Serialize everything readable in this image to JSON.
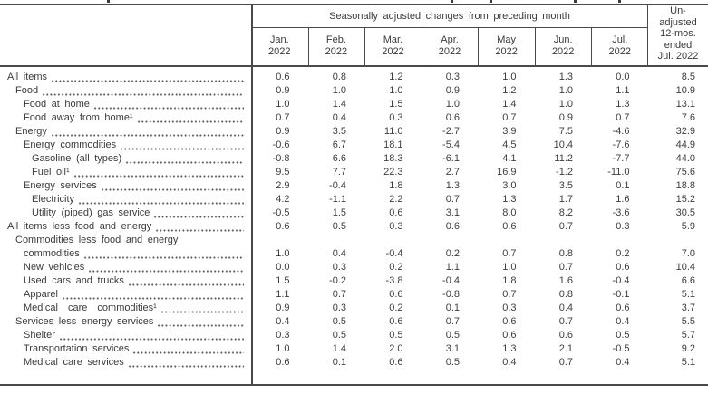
{
  "table": {
    "group_header": "Seasonally adjusted changes from preceding month",
    "months": [
      "Jan.",
      "Feb.",
      "Mar.",
      "Apr.",
      "May",
      "Jun.",
      "Jul."
    ],
    "year": "2022",
    "unadjusted_header_lines": [
      "Un-",
      "adjusted",
      "12-mos.",
      "ended",
      "Jul. 2022"
    ],
    "rows": [
      {
        "label": "All items",
        "indent": 0,
        "values": [
          "0.6",
          "0.8",
          "1.2",
          "0.3",
          "1.0",
          "1.3",
          "0.0"
        ],
        "unadjusted_12mo": "8.5"
      },
      {
        "label": "Food",
        "indent": 1,
        "values": [
          "0.9",
          "1.0",
          "1.0",
          "0.9",
          "1.2",
          "1.0",
          "1.1"
        ],
        "unadjusted_12mo": "10.9"
      },
      {
        "label": "Food at home",
        "indent": 2,
        "values": [
          "1.0",
          "1.4",
          "1.5",
          "1.0",
          "1.4",
          "1.0",
          "1.3"
        ],
        "unadjusted_12mo": "13.1"
      },
      {
        "label": "Food away from home¹",
        "indent": 2,
        "values": [
          "0.7",
          "0.4",
          "0.3",
          "0.6",
          "0.7",
          "0.9",
          "0.7"
        ],
        "unadjusted_12mo": "7.6"
      },
      {
        "label": "Energy",
        "indent": 1,
        "values": [
          "0.9",
          "3.5",
          "11.0",
          "-2.7",
          "3.9",
          "7.5",
          "-4.6"
        ],
        "unadjusted_12mo": "32.9"
      },
      {
        "label": "Energy commodities",
        "indent": 2,
        "values": [
          "-0.6",
          "6.7",
          "18.1",
          "-5.4",
          "4.5",
          "10.4",
          "-7.6"
        ],
        "unadjusted_12mo": "44.9"
      },
      {
        "label": "Gasoline (all types)",
        "indent": 3,
        "values": [
          "-0.8",
          "6.6",
          "18.3",
          "-6.1",
          "4.1",
          "11.2",
          "-7.7"
        ],
        "unadjusted_12mo": "44.0"
      },
      {
        "label": "Fuel oil¹",
        "indent": 3,
        "values": [
          "9.5",
          "7.7",
          "22.3",
          "2.7",
          "16.9",
          "-1.2",
          "-11.0"
        ],
        "unadjusted_12mo": "75.6"
      },
      {
        "label": "Energy services",
        "indent": 2,
        "values": [
          "2.9",
          "-0.4",
          "1.8",
          "1.3",
          "3.0",
          "3.5",
          "0.1"
        ],
        "unadjusted_12mo": "18.8"
      },
      {
        "label": "Electricity",
        "indent": 3,
        "values": [
          "4.2",
          "-1.1",
          "2.2",
          "0.7",
          "1.3",
          "1.7",
          "1.6"
        ],
        "unadjusted_12mo": "15.2"
      },
      {
        "label": "Utility (piped) gas service",
        "indent": 3,
        "values": [
          "-0.5",
          "1.5",
          "0.6",
          "3.1",
          "8.0",
          "8.2",
          "-3.6"
        ],
        "unadjusted_12mo": "30.5"
      },
      {
        "label": "All items less food and energy",
        "indent": 0,
        "values": [
          "0.6",
          "0.5",
          "0.3",
          "0.6",
          "0.6",
          "0.7",
          "0.3"
        ],
        "unadjusted_12mo": "5.9"
      },
      {
        "label": "Commodities less food and energy",
        "label2": "commodities",
        "indent": 1,
        "indent2": 2,
        "values": [
          "1.0",
          "0.4",
          "-0.4",
          "0.2",
          "0.7",
          "0.8",
          "0.2"
        ],
        "unadjusted_12mo": "7.0"
      },
      {
        "label": "New vehicles",
        "indent": 2,
        "values": [
          "0.0",
          "0.3",
          "0.2",
          "1.1",
          "1.0",
          "0.7",
          "0.6"
        ],
        "unadjusted_12mo": "10.4"
      },
      {
        "label": "Used cars and trucks",
        "indent": 2,
        "values": [
          "1.5",
          "-0.2",
          "-3.8",
          "-0.4",
          "1.8",
          "1.6",
          "-0.4"
        ],
        "unadjusted_12mo": "6.6"
      },
      {
        "label": "Apparel",
        "indent": 2,
        "values": [
          "1.1",
          "0.7",
          "0.6",
          "-0.8",
          "0.7",
          "0.8",
          "-0.1"
        ],
        "unadjusted_12mo": "5.1"
      },
      {
        "label": "Medical care commodities¹",
        "indent": 2,
        "wide_spacing": true,
        "values": [
          "0.9",
          "0.3",
          "0.2",
          "0.1",
          "0.3",
          "0.4",
          "0.6"
        ],
        "unadjusted_12mo": "3.7"
      },
      {
        "label": "Services less energy services",
        "indent": 1,
        "values": [
          "0.4",
          "0.5",
          "0.6",
          "0.7",
          "0.6",
          "0.7",
          "0.4"
        ],
        "unadjusted_12mo": "5.5"
      },
      {
        "label": "Shelter",
        "indent": 2,
        "values": [
          "0.3",
          "0.5",
          "0.5",
          "0.5",
          "0.6",
          "0.6",
          "0.5"
        ],
        "unadjusted_12mo": "5.7"
      },
      {
        "label": "Transportation services",
        "indent": 2,
        "values": [
          "1.0",
          "1.4",
          "2.0",
          "3.1",
          "1.3",
          "2.1",
          "-0.5"
        ],
        "unadjusted_12mo": "9.2"
      },
      {
        "label": "Medical care services",
        "indent": 2,
        "values": [
          "0.6",
          "0.1",
          "0.6",
          "0.5",
          "0.4",
          "0.7",
          "0.4"
        ],
        "unadjusted_12mo": "5.1"
      }
    ]
  },
  "colors": {
    "border": "#4a4a4a",
    "text": "#3b3b3b",
    "background": "#ffffff"
  }
}
